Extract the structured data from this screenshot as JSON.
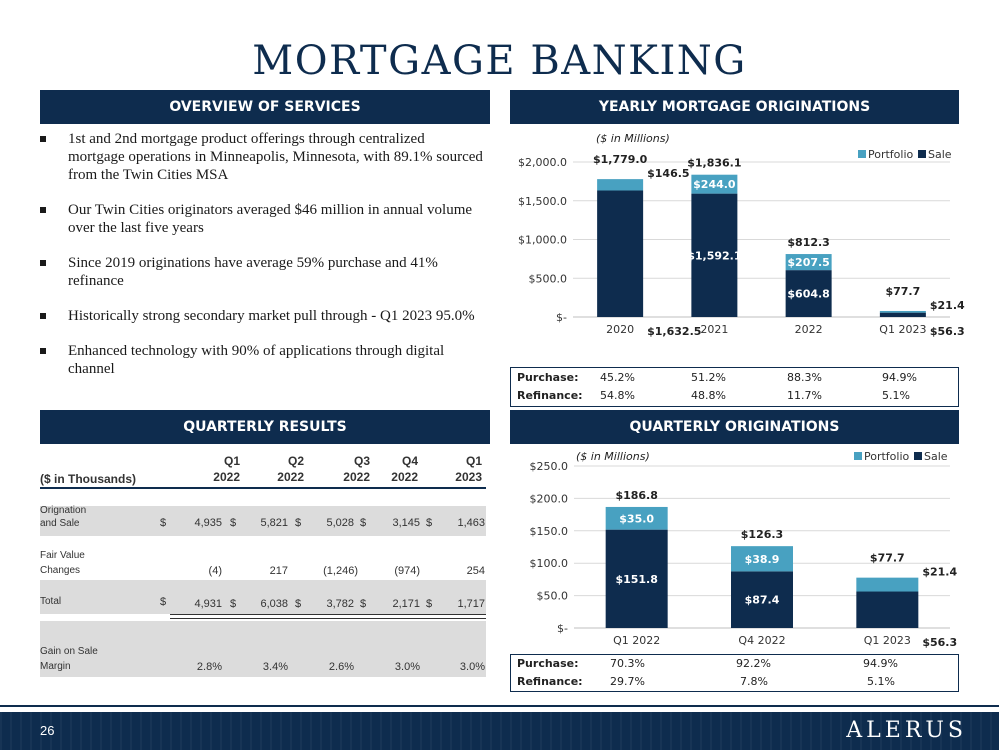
{
  "title": "MORTGAGE BANKING",
  "colors": {
    "navy": "#0e2c4e",
    "teal": "#48a1c1",
    "grid": "#d9d9d9",
    "row_shade": "#dcdcdc"
  },
  "overview": {
    "heading": "OVERVIEW OF SERVICES",
    "bullets": [
      "1st and 2nd mortgage product offerings through centralized mortgage operations in Minneapolis, Minnesota, with 89.1% sourced from the Twin Cities MSA",
      "Our Twin Cities originators averaged $46 million in annual volume over the last five years",
      "Since 2019 originations have average 59% purchase and 41% refinance",
      "Historically strong secondary market pull through - Q1 2023 95.0%",
      "Enhanced technology with 90% of applications through digital channel"
    ]
  },
  "yearly": {
    "heading": "YEARLY MORTGAGE ORIGINATIONS",
    "units_label": "($ in Millions)",
    "legend": [
      "Portfolio",
      "Sale"
    ],
    "mix": {
      "purchase_label": "Purchase:",
      "refinance_label": "Refinance:",
      "purchase": [
        "45.2%",
        "51.2%",
        "88.3%",
        "94.9%"
      ],
      "refinance": [
        "54.8%",
        "48.8%",
        "11.7%",
        "5.1%"
      ]
    }
  },
  "quarterly_results": {
    "heading": "QUARTERLY RESULTS",
    "units_label": "($ in Thousands)",
    "columns": [
      {
        "q": "Q1",
        "y": "2022"
      },
      {
        "q": "Q2",
        "y": "2022"
      },
      {
        "q": "Q3",
        "y": "2022"
      },
      {
        "q": "Q4",
        "y": "2022"
      },
      {
        "q": "Q1",
        "y": "2023"
      }
    ],
    "rows": [
      {
        "label1": "Orignation",
        "label2": "and Sale",
        "dollar": "$",
        "values": [
          "4,935",
          "5,821",
          "5,028",
          "3,145",
          "1,463"
        ]
      },
      {
        "label1": "Fair Value",
        "label2": "Changes",
        "dollar": "",
        "values": [
          "(4)",
          "217",
          "(1,246)",
          "(974)",
          "254"
        ]
      },
      {
        "label1": "Total",
        "label2": "",
        "dollar": "$",
        "values": [
          "4,931",
          "6,038",
          "3,782",
          "2,171",
          "1,717"
        ]
      },
      {
        "label1": "Gain on Sale",
        "label2": "Margin",
        "dollar": "",
        "values": [
          "2.8%",
          "3.4%",
          "2.6%",
          "3.0%",
          "3.0%"
        ]
      }
    ]
  },
  "quarterly": {
    "heading": "QUARTERLY ORIGINATIONS",
    "units_label": "($ in Millions)",
    "legend": [
      "Portfolio",
      "Sale"
    ],
    "mix": {
      "purchase_label": "Purchase:",
      "refinance_label": "Refinance:",
      "purchase": [
        "70.3%",
        "92.2%",
        "94.9%"
      ],
      "refinance": [
        "29.7%",
        "7.8%",
        "5.1%"
      ]
    }
  },
  "chart_data": [
    {
      "type": "bar",
      "stacked": true,
      "title": "YEARLY MORTGAGE ORIGINATIONS",
      "categories": [
        "2020",
        "2021",
        "2022",
        "Q1 2023"
      ],
      "series": [
        {
          "name": "Sale",
          "values": [
            1632.5,
            1592.1,
            604.8,
            56.3
          ],
          "labels": [
            "$1,632.5",
            "$1,592.1",
            "$604.8",
            "$56.3"
          ]
        },
        {
          "name": "Portfolio",
          "values": [
            146.5,
            244.0,
            207.5,
            21.4
          ],
          "labels": [
            "$146.5",
            "$244.0",
            "$207.5",
            "$21.4"
          ]
        }
      ],
      "totals": [
        "$1,779.0",
        "$1,836.1",
        "$812.3",
        "$77.7"
      ],
      "ylim": [
        0,
        2000
      ],
      "yticks": [
        0,
        500,
        1000,
        1500,
        2000
      ],
      "ytick_labels": [
        "$-",
        "$500.0",
        "$1,000.0",
        "$1,500.0",
        "$2,000.0"
      ],
      "grid": true,
      "legend_position": "top-right"
    },
    {
      "type": "bar",
      "stacked": true,
      "title": "QUARTERLY ORIGINATIONS",
      "categories": [
        "Q1 2022",
        "Q4 2022",
        "Q1 2023"
      ],
      "series": [
        {
          "name": "Sale",
          "values": [
            151.8,
            87.4,
            56.3
          ],
          "labels": [
            "$151.8",
            "$87.4",
            "$56.3"
          ]
        },
        {
          "name": "Portfolio",
          "values": [
            35.0,
            38.9,
            21.4
          ],
          "labels": [
            "$35.0",
            "$38.9",
            "$21.4"
          ]
        }
      ],
      "totals": [
        "$186.8",
        "$126.3",
        "$77.7"
      ],
      "ylim": [
        0,
        250
      ],
      "yticks": [
        0,
        50,
        100,
        150,
        200,
        250
      ],
      "ytick_labels": [
        "$-",
        "$50.0",
        "$100.0",
        "$150.0",
        "$200.0",
        "$250.0"
      ],
      "grid": true,
      "legend_position": "top-right"
    }
  ],
  "footer": {
    "page_number": "26",
    "logo_text": "ALERUS"
  }
}
